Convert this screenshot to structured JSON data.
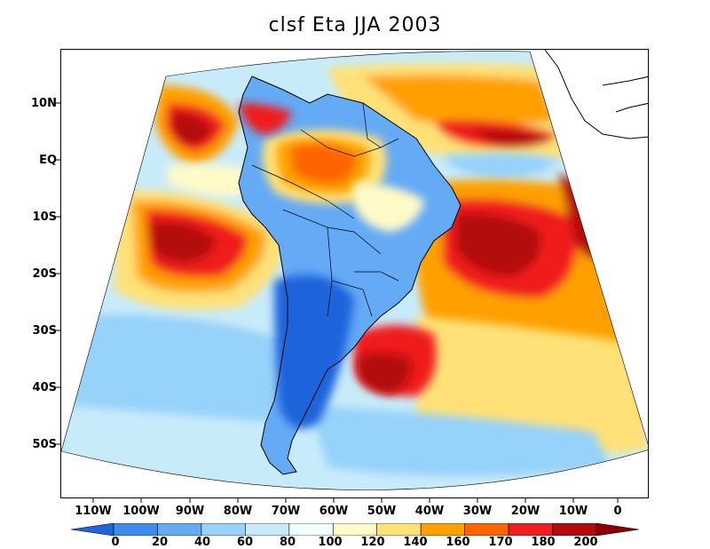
{
  "title": "clsf Eta JJA 2003",
  "y_axis_labels": [
    "10N",
    "EQ",
    "10S",
    "20S",
    "30S",
    "40S",
    "50S"
  ],
  "x_axis_labels": [
    "110W",
    "100W",
    "90W",
    "80W",
    "70W",
    "60W",
    "50W",
    "40W",
    "30W",
    "20W",
    "10W",
    "0"
  ],
  "colorbar": {
    "tick_labels": [
      "0",
      "20",
      "40",
      "60",
      "80",
      "100",
      "120",
      "140",
      "160",
      "170",
      "180",
      "200"
    ],
    "colors": [
      "#1e64dc",
      "#3c8cf0",
      "#64aaf5",
      "#96d2fa",
      "#c8ebfa",
      "#f0ffff",
      "#fffac8",
      "#ffe178",
      "#ffa000",
      "#ff6400",
      "#f01e1e",
      "#b40a0a",
      "#8c0000"
    ]
  },
  "field_colors": {
    "ocean_default": "#c8ebfa",
    "land_blue": "#3c8cf0",
    "land_deep_blue": "#1e64dc",
    "amazon": "#ff6400",
    "brazil_high": "#ffe178",
    "stratus_core": "#b40a0a",
    "stratus_mid": "#f01e1e",
    "stratus_outer": "#ffa000",
    "cloud_low": "#fffac8"
  }
}
